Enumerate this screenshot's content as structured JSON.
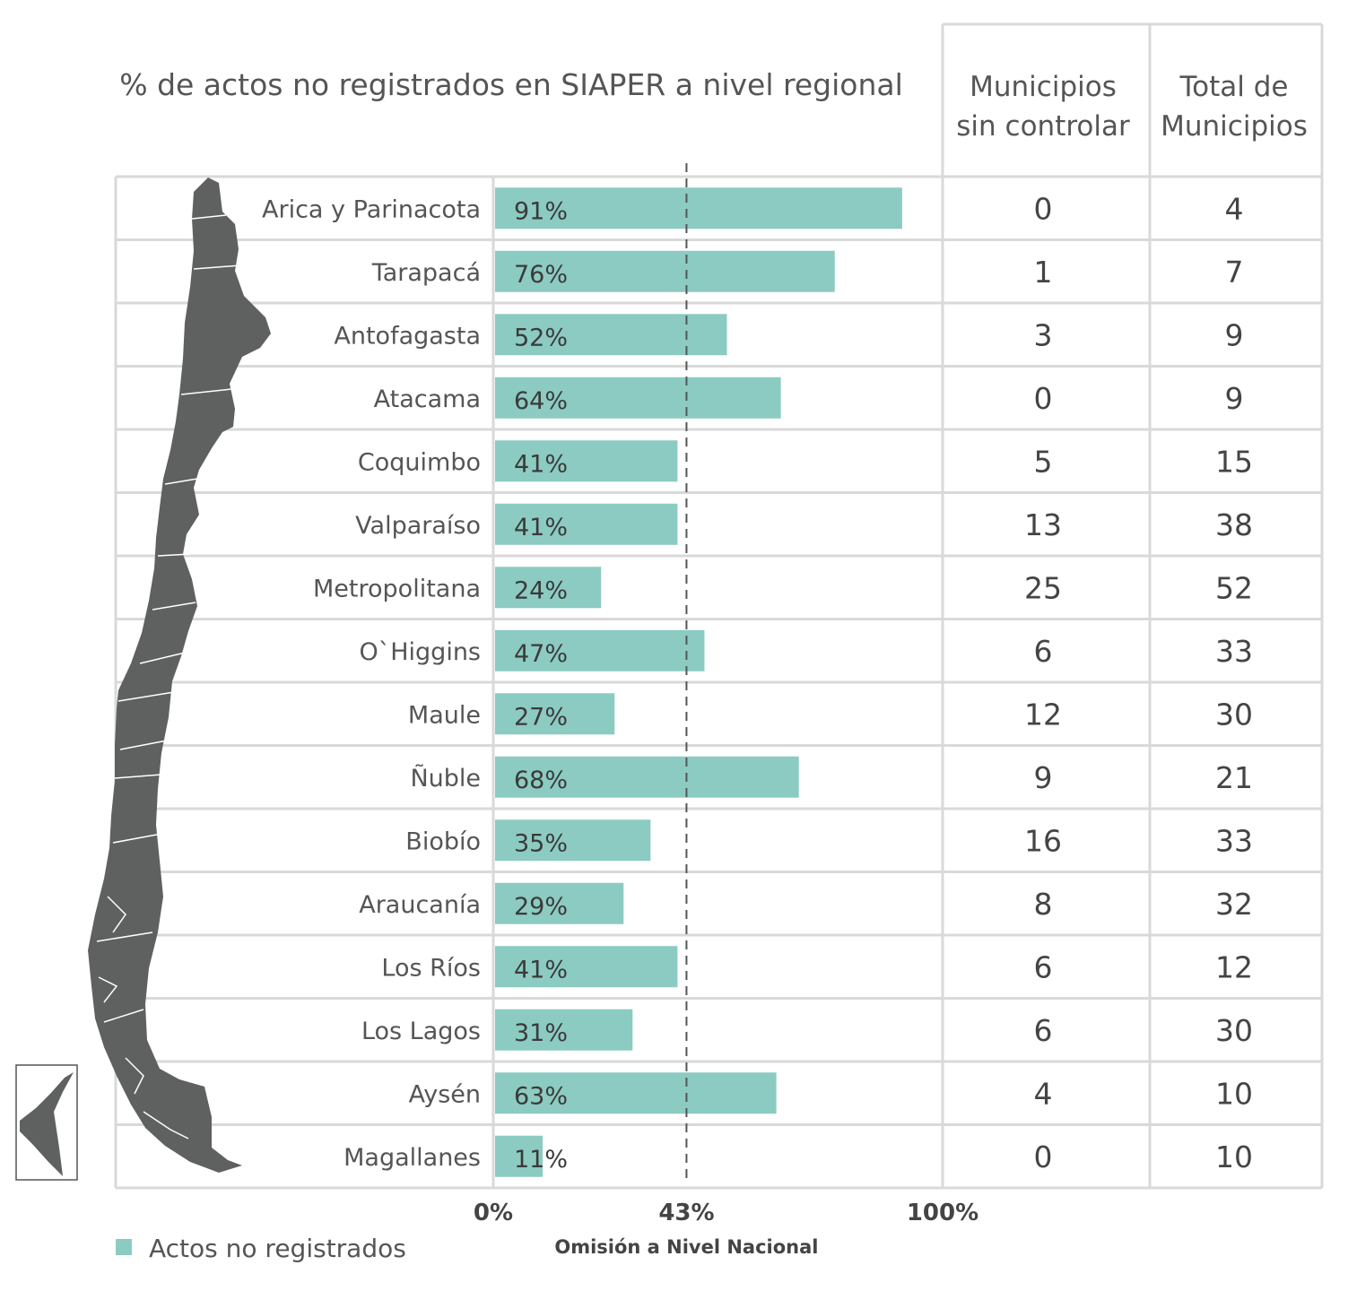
{
  "chart_data": {
    "type": "bar",
    "orientation": "horizontal",
    "title": "% de actos no registrados en SIAPER a nivel regional",
    "categories": [
      "Arica y Parinacota",
      "Tarapacá",
      "Antofagasta",
      "Atacama",
      "Coquimbo",
      "Valparaíso",
      "Metropolitana",
      "O`Higgins",
      "Maule",
      "Ñuble",
      "Biobío",
      "Araucanía",
      "Los Ríos",
      "Los Lagos",
      "Aysén",
      "Magallanes"
    ],
    "series": [
      {
        "name": "Actos no registrados",
        "values": [
          91,
          76,
          52,
          64,
          41,
          41,
          24,
          47,
          27,
          68,
          35,
          29,
          41,
          31,
          63,
          11
        ],
        "color": "#8ccbc1"
      }
    ],
    "value_labels": [
      "91%",
      "76%",
      "52%",
      "64%",
      "41%",
      "41%",
      "24%",
      "47%",
      "27%",
      "68%",
      "35%",
      "29%",
      "41%",
      "31%",
      "63%",
      "11%"
    ],
    "xlim": [
      0,
      100
    ],
    "x_ticks": [
      {
        "value": 0,
        "label": "0%"
      },
      {
        "value": 43,
        "label": "43%"
      },
      {
        "value": 100,
        "label": "100%"
      }
    ],
    "reference_line": {
      "value": 43,
      "label": "Omisión a Nivel Nacional",
      "style": "dashed"
    },
    "legend": {
      "position": "bottom-left",
      "label": "Actos no registrados"
    },
    "table_columns": [
      {
        "header_lines": [
          "Municipios",
          "sin controlar"
        ],
        "values": [
          "0",
          "1",
          "3",
          "0",
          "5",
          "13",
          "25",
          "6",
          "12",
          "9",
          "16",
          "8",
          "6",
          "6",
          "4",
          "0"
        ]
      },
      {
        "header_lines": [
          "Total   de",
          "Municipios"
        ],
        "values": [
          "4",
          "7",
          "9",
          "9",
          "15",
          "38",
          "52",
          "33",
          "30",
          "21",
          "33",
          "32",
          "12",
          "30",
          "10",
          "10"
        ]
      }
    ]
  },
  "colors": {
    "bar": "#8ccbc1",
    "grid": "#d9d9d9",
    "map": "#5f6160",
    "text": "#555555"
  },
  "map_icon": "chile-map-icon"
}
